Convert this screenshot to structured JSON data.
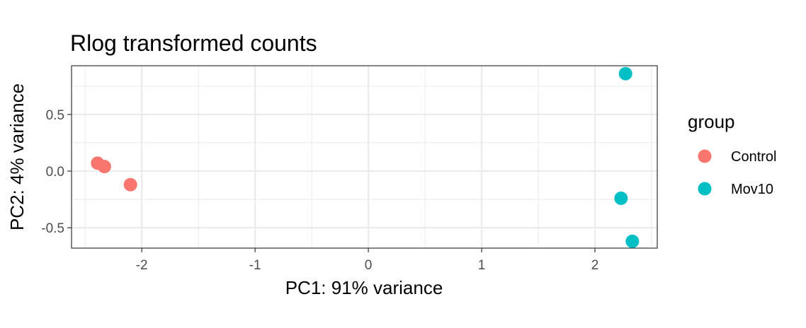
{
  "chart_data": {
    "type": "scatter",
    "title": "Rlog transformed counts",
    "xlabel": "PC1: 91% variance",
    "ylabel": "PC2: 4% variance",
    "xlim": [
      -2.62,
      2.55
    ],
    "ylim": [
      -0.68,
      0.93
    ],
    "x_major_ticks": [
      -2,
      -1,
      0,
      1,
      2
    ],
    "x_minor_ticks": [
      -2.5,
      -1.5,
      -0.5,
      0.5,
      1.5,
      2.5
    ],
    "y_major_ticks": [
      -0.5,
      0.0,
      0.5
    ],
    "y_minor_ticks": [
      -0.25,
      0.25,
      0.75
    ],
    "x_tick_labels": [
      "-2",
      "-1",
      "0",
      "1",
      "2"
    ],
    "y_tick_labels": [
      "-0.5",
      "0.0",
      "0.5"
    ],
    "grid": true,
    "legend": {
      "title": "group",
      "placement": "right",
      "entries": [
        {
          "label": "Control",
          "color": "#F8766D"
        },
        {
          "label": "Mov10",
          "color": "#00BFC4"
        }
      ]
    },
    "series": [
      {
        "name": "Control",
        "color": "#F8766D",
        "points": [
          {
            "x": -2.39,
            "y": 0.07
          },
          {
            "x": -2.33,
            "y": 0.04
          },
          {
            "x": -2.1,
            "y": -0.12
          }
        ]
      },
      {
        "name": "Mov10",
        "color": "#00BFC4",
        "points": [
          {
            "x": 2.27,
            "y": 0.86
          },
          {
            "x": 2.23,
            "y": -0.24
          },
          {
            "x": 2.33,
            "y": -0.62
          }
        ]
      }
    ]
  }
}
